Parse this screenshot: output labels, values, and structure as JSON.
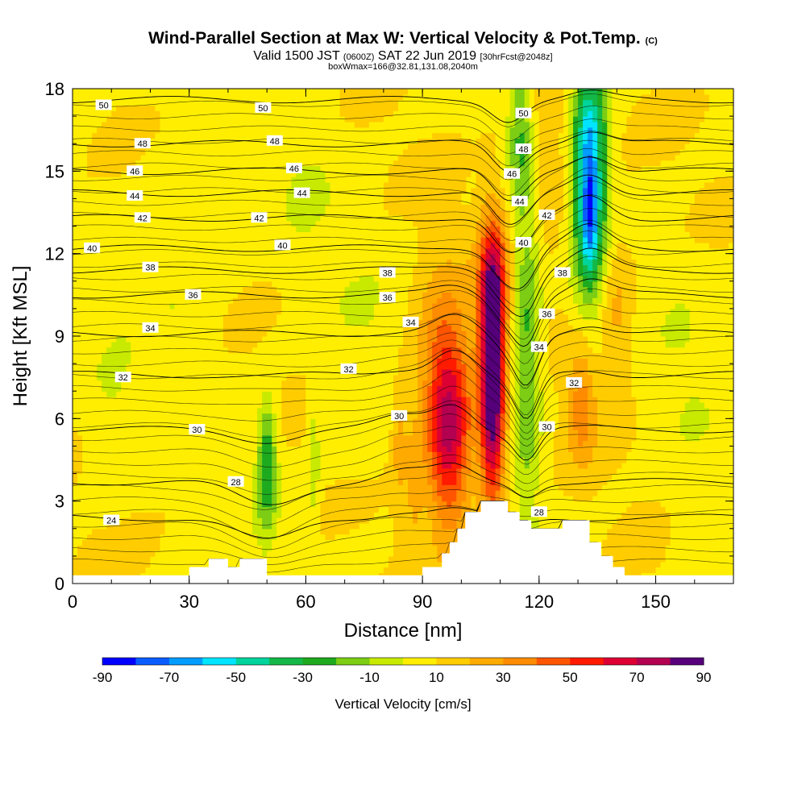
{
  "header": {
    "title_main": "Wind-Parallel Section at Max W: Vertical Velocity & Pot.Temp.",
    "title_unit": "(C)",
    "valid_text": "Valid 1500 JST",
    "valid_utc": "(0600Z)",
    "valid_date": "SAT 22 Jun 2019",
    "forecast": "[30hrFcst@2048z]",
    "box_info": "boxWmax=166@32.81,131.08,2040m"
  },
  "chart_data": {
    "type": "heatmap",
    "xlabel": "Distance [nm]",
    "ylabel": "Height [Kft MSL]",
    "xlim": [
      0,
      170
    ],
    "ylim": [
      0,
      18
    ],
    "x_ticks": [
      0,
      30,
      60,
      90,
      120,
      150
    ],
    "y_ticks": [
      0,
      3,
      6,
      9,
      12,
      15,
      18
    ],
    "colorbar": {
      "label": "Vertical Velocity [cm/s]",
      "tick_labels": [
        -90,
        -70,
        -50,
        -30,
        -10,
        10,
        30,
        50,
        70,
        90
      ],
      "bounds": [
        -90,
        -80,
        -70,
        -60,
        -50,
        -40,
        -30,
        -20,
        -10,
        0,
        10,
        20,
        30,
        40,
        50,
        60,
        70,
        80,
        90
      ],
      "colors": [
        "#0000ff",
        "#0a5cff",
        "#009cff",
        "#00e4ff",
        "#00d49c",
        "#14b846",
        "#1eaa1e",
        "#7ccd14",
        "#c8ea00",
        "#ffee00",
        "#ffcc00",
        "#ffaa00",
        "#ff8c00",
        "#ff5500",
        "#ff1a00",
        "#dd0033",
        "#b30050",
        "#55007a"
      ]
    },
    "w_features": [
      {
        "x": 108,
        "y": 7.5,
        "sx": 2.2,
        "sy": 3.2,
        "w": 95
      },
      {
        "x": 97,
        "y": 5.3,
        "sx": 4.0,
        "sy": 2.4,
        "w": 55
      },
      {
        "x": 95,
        "y": 8.0,
        "sx": 5.0,
        "sy": 2.5,
        "w": 25
      },
      {
        "x": 108,
        "y": 11.0,
        "sx": 3.0,
        "sy": 1.5,
        "w": 30
      },
      {
        "x": 117,
        "y": 8.5,
        "sx": 2.5,
        "sy": 4.0,
        "w": -32
      },
      {
        "x": 115,
        "y": 16.5,
        "sx": 2.0,
        "sy": 2.0,
        "w": -25
      },
      {
        "x": 133,
        "y": 14.0,
        "sx": 3.0,
        "sy": 2.5,
        "w": -62
      },
      {
        "x": 133,
        "y": 13.5,
        "sx": 1.2,
        "sy": 1.3,
        "w": -30
      },
      {
        "x": 133,
        "y": 17.0,
        "sx": 3.0,
        "sy": 1.5,
        "w": -30
      },
      {
        "x": 131,
        "y": 6.5,
        "sx": 2.5,
        "sy": 1.5,
        "w": 28
      },
      {
        "x": 140,
        "y": 10.0,
        "sx": 3.0,
        "sy": 2.0,
        "w": 16
      },
      {
        "x": 123,
        "y": 16.0,
        "sx": 4.0,
        "sy": 3.0,
        "w": 12
      },
      {
        "x": 50,
        "y": 3.6,
        "sx": 2.0,
        "sy": 1.5,
        "w": -28
      },
      {
        "x": 50,
        "y": 5.5,
        "sx": 1.5,
        "sy": 1.2,
        "w": -20
      },
      {
        "x": 62,
        "y": 4.5,
        "sx": 1.0,
        "sy": 1.5,
        "w": -18
      },
      {
        "x": 28,
        "y": 12.0,
        "sx": 8.0,
        "sy": 3.0,
        "w": -8
      },
      {
        "x": 10,
        "y": 6.0,
        "sx": 5.0,
        "sy": 2.0,
        "w": -8
      },
      {
        "x": 75,
        "y": 8.0,
        "sx": 7.0,
        "sy": 3.0,
        "w": -6
      },
      {
        "x": 60,
        "y": 15.0,
        "sx": 6.0,
        "sy": 3.0,
        "w": -6
      },
      {
        "x": 158,
        "y": 8.0,
        "sx": 6.0,
        "sy": 3.0,
        "w": -6
      },
      {
        "x": 160,
        "y": 2.0,
        "sx": 4.0,
        "sy": 1.2,
        "w": -6
      },
      {
        "x": 84,
        "y": 5.5,
        "sx": 1.5,
        "sy": 1.8,
        "w": 16
      },
      {
        "x": 88,
        "y": 3.5,
        "sx": 1.5,
        "sy": 1.5,
        "w": 14
      }
    ],
    "terrain_profile": [
      [
        0,
        0.3
      ],
      [
        30,
        0.3
      ],
      [
        30,
        0.6
      ],
      [
        35,
        0.6
      ],
      [
        35,
        0.9
      ],
      [
        40,
        0.9
      ],
      [
        40,
        0.6
      ],
      [
        43,
        0.6
      ],
      [
        43,
        0.9
      ],
      [
        50,
        0.9
      ],
      [
        50,
        0.3
      ],
      [
        90,
        0.3
      ],
      [
        90,
        0.6
      ],
      [
        95,
        0.6
      ],
      [
        95,
        1.1
      ],
      [
        97,
        1.1
      ],
      [
        97,
        1.5
      ],
      [
        99,
        1.5
      ],
      [
        99,
        2.0
      ],
      [
        101,
        2.0
      ],
      [
        101,
        2.6
      ],
      [
        105,
        2.6
      ],
      [
        105,
        3.0
      ],
      [
        112,
        3.0
      ],
      [
        112,
        2.6
      ],
      [
        115,
        2.6
      ],
      [
        115,
        2.3
      ],
      [
        118,
        2.3
      ],
      [
        118,
        2.0
      ],
      [
        126,
        2.0
      ],
      [
        126,
        2.3
      ],
      [
        133,
        2.3
      ],
      [
        133,
        1.5
      ],
      [
        136,
        1.5
      ],
      [
        136,
        1.0
      ],
      [
        139,
        1.0
      ],
      [
        139,
        0.6
      ],
      [
        142,
        0.6
      ],
      [
        142,
        0.3
      ],
      [
        170,
        0.3
      ]
    ],
    "theta_levels": [
      {
        "value": 24,
        "base_y": 2.4
      },
      {
        "value": 28,
        "base_y": 3.7
      },
      {
        "value": 30,
        "base_y": 5.6
      },
      {
        "value": 32,
        "base_y": 7.6
      },
      {
        "value": 34,
        "base_y": 9.1
      },
      {
        "value": 36,
        "base_y": 10.5
      },
      {
        "value": 38,
        "base_y": 11.4
      },
      {
        "value": 40,
        "base_y": 12.2
      },
      {
        "value": 42,
        "base_y": 13.3
      },
      {
        "value": 44,
        "base_y": 14.2
      },
      {
        "value": 46,
        "base_y": 15.0
      },
      {
        "value": 48,
        "base_y": 16.0
      },
      {
        "value": 50,
        "base_y": 17.6
      }
    ],
    "theta_labels": [
      {
        "text": "50",
        "x": 8,
        "y": 17.4
      },
      {
        "text": "50",
        "x": 49,
        "y": 17.3
      },
      {
        "text": "50",
        "x": 116,
        "y": 17.1
      },
      {
        "text": "48",
        "x": 18,
        "y": 16.0
      },
      {
        "text": "48",
        "x": 52,
        "y": 16.1
      },
      {
        "text": "48",
        "x": 116,
        "y": 15.8
      },
      {
        "text": "46",
        "x": 16,
        "y": 15.0
      },
      {
        "text": "46",
        "x": 57,
        "y": 15.1
      },
      {
        "text": "46",
        "x": 113,
        "y": 14.9
      },
      {
        "text": "44",
        "x": 16,
        "y": 14.1
      },
      {
        "text": "44",
        "x": 59,
        "y": 14.2
      },
      {
        "text": "44",
        "x": 115,
        "y": 13.9
      },
      {
        "text": "42",
        "x": 18,
        "y": 13.3
      },
      {
        "text": "42",
        "x": 48,
        "y": 13.3
      },
      {
        "text": "42",
        "x": 122,
        "y": 13.4
      },
      {
        "text": "40",
        "x": 5,
        "y": 12.2
      },
      {
        "text": "40",
        "x": 54,
        "y": 12.3
      },
      {
        "text": "40",
        "x": 116,
        "y": 12.4
      },
      {
        "text": "38",
        "x": 20,
        "y": 11.5
      },
      {
        "text": "38",
        "x": 81,
        "y": 11.3
      },
      {
        "text": "38",
        "x": 126,
        "y": 11.3
      },
      {
        "text": "36",
        "x": 31,
        "y": 10.5
      },
      {
        "text": "36",
        "x": 81,
        "y": 10.4
      },
      {
        "text": "36",
        "x": 122,
        "y": 9.8
      },
      {
        "text": "34",
        "x": 20,
        "y": 9.3
      },
      {
        "text": "34",
        "x": 87,
        "y": 9.5
      },
      {
        "text": "34",
        "x": 120,
        "y": 8.6
      },
      {
        "text": "32",
        "x": 13,
        "y": 7.5
      },
      {
        "text": "32",
        "x": 71,
        "y": 7.8
      },
      {
        "text": "32",
        "x": 129,
        "y": 7.3
      },
      {
        "text": "30",
        "x": 32,
        "y": 5.6
      },
      {
        "text": "30",
        "x": 84,
        "y": 6.1
      },
      {
        "text": "30",
        "x": 122,
        "y": 5.7
      },
      {
        "text": "28",
        "x": 42,
        "y": 3.7
      },
      {
        "text": "28",
        "x": 120,
        "y": 2.6
      },
      {
        "text": "24",
        "x": 10,
        "y": 2.3
      }
    ]
  }
}
